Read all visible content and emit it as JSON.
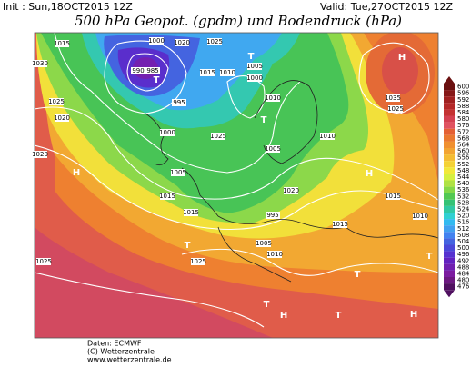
{
  "header": {
    "init": "Init : Sun,18OCT2015 12Z",
    "valid": "Valid: Tue,27OCT2015 12Z",
    "title": "500 hPa Geopot. (gpdm) und Bodendruck (hPa)"
  },
  "colorbar": [
    {
      "label": "600",
      "color": "#6a1010"
    },
    {
      "label": "596",
      "color": "#861818"
    },
    {
      "label": "592",
      "color": "#a02020"
    },
    {
      "label": "588",
      "color": "#b42828"
    },
    {
      "label": "584",
      "color": "#c43232"
    },
    {
      "label": "580",
      "color": "#d44050"
    },
    {
      "label": "576",
      "color": "#e05260"
    },
    {
      "label": "572",
      "color": "#e46034"
    },
    {
      "label": "568",
      "color": "#ea7830"
    },
    {
      "label": "564",
      "color": "#f09030"
    },
    {
      "label": "560",
      "color": "#f2a432"
    },
    {
      "label": "556",
      "color": "#f4bc34"
    },
    {
      "label": "552",
      "color": "#f4d236"
    },
    {
      "label": "548",
      "color": "#f2e83a"
    },
    {
      "label": "544",
      "color": "#d6f040"
    },
    {
      "label": "540",
      "color": "#b0e244"
    },
    {
      "label": "536",
      "color": "#84d848"
    },
    {
      "label": "532",
      "color": "#52c852"
    },
    {
      "label": "528",
      "color": "#34c276"
    },
    {
      "label": "524",
      "color": "#30c8a4"
    },
    {
      "label": "520",
      "color": "#30d0d2"
    },
    {
      "label": "516",
      "color": "#32baf0"
    },
    {
      "label": "512",
      "color": "#40a0f0"
    },
    {
      "label": "508",
      "color": "#4282f0"
    },
    {
      "label": "504",
      "color": "#4464e0"
    },
    {
      "label": "500",
      "color": "#4a48d8"
    },
    {
      "label": "496",
      "color": "#5632d0"
    },
    {
      "label": "492",
      "color": "#6222c0"
    },
    {
      "label": "488",
      "color": "#7020b0"
    },
    {
      "label": "484",
      "color": "#7c1ca0"
    },
    {
      "label": "480",
      "color": "#6c1880"
    },
    {
      "label": "476",
      "color": "#501060"
    }
  ],
  "map": {
    "labels": [
      "1015",
      "1030",
      "1000",
      "1020",
      "1025",
      "990",
      "985",
      "1015",
      "1010",
      "1005",
      "1000",
      "1025",
      "1020",
      "995",
      "1000",
      "1005",
      "1020",
      "1015",
      "1015",
      "1025",
      "1025",
      "1005",
      "1020",
      "995",
      "1005",
      "1010",
      "1010",
      "1035",
      "1025",
      "1015",
      "1015",
      "1010",
      "1025",
      "1010",
      "H",
      "H",
      "H",
      "H",
      "H",
      "T",
      "T",
      "T",
      "T",
      "T",
      "T",
      "T",
      "T"
    ]
  },
  "footer": {
    "data": "Daten: ECMWF",
    "copyright": "(C) Wetterzentrale",
    "url": "www.wetterzentrale.de"
  }
}
